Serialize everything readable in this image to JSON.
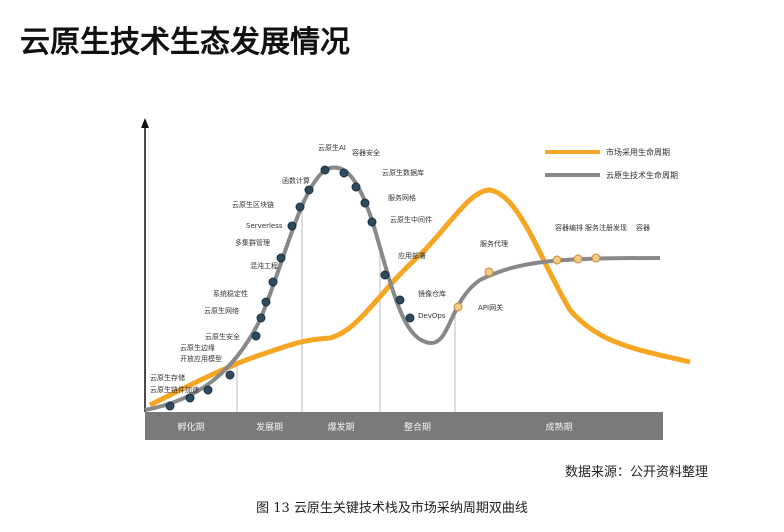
{
  "header": {
    "title": "云原生技术生态发展情况"
  },
  "legend": [
    "市场采用生命周期",
    "云原生技术生命周期"
  ],
  "points": [
    {
      "label": "云原生链件加速"
    },
    {
      "label": "云原生存储"
    },
    {
      "label": "开放应用模型"
    },
    {
      "label": "云原生边缘"
    },
    {
      "label": "云原生安全"
    },
    {
      "label": "云原生网络"
    },
    {
      "label": "系统稳定性"
    },
    {
      "label": "混沌工程"
    },
    {
      "label": "多集群管理"
    },
    {
      "label": "Serverless"
    },
    {
      "label": "云原生区块链"
    },
    {
      "label": "函数计算"
    },
    {
      "label": "云原生AI"
    },
    {
      "label": "容器安全"
    },
    {
      "label": "云原生数据库"
    },
    {
      "label": "服务网格"
    },
    {
      "label": "云原生中间件"
    },
    {
      "label": "应用部署"
    },
    {
      "label": "镜像仓库"
    },
    {
      "label": "DevOps"
    },
    {
      "label": "API网关"
    },
    {
      "label": "服务代理"
    },
    {
      "label": "容器编排"
    },
    {
      "label": "服务注册发现"
    },
    {
      "label": "容器"
    }
  ],
  "phases": [
    "孵化期",
    "发展期",
    "爆发期",
    "整合期",
    "成熟期"
  ],
  "source": "数据来源：公开资料整理",
  "caption": "图 13  云原生关键技术栈及市场采纳周期双曲线"
}
